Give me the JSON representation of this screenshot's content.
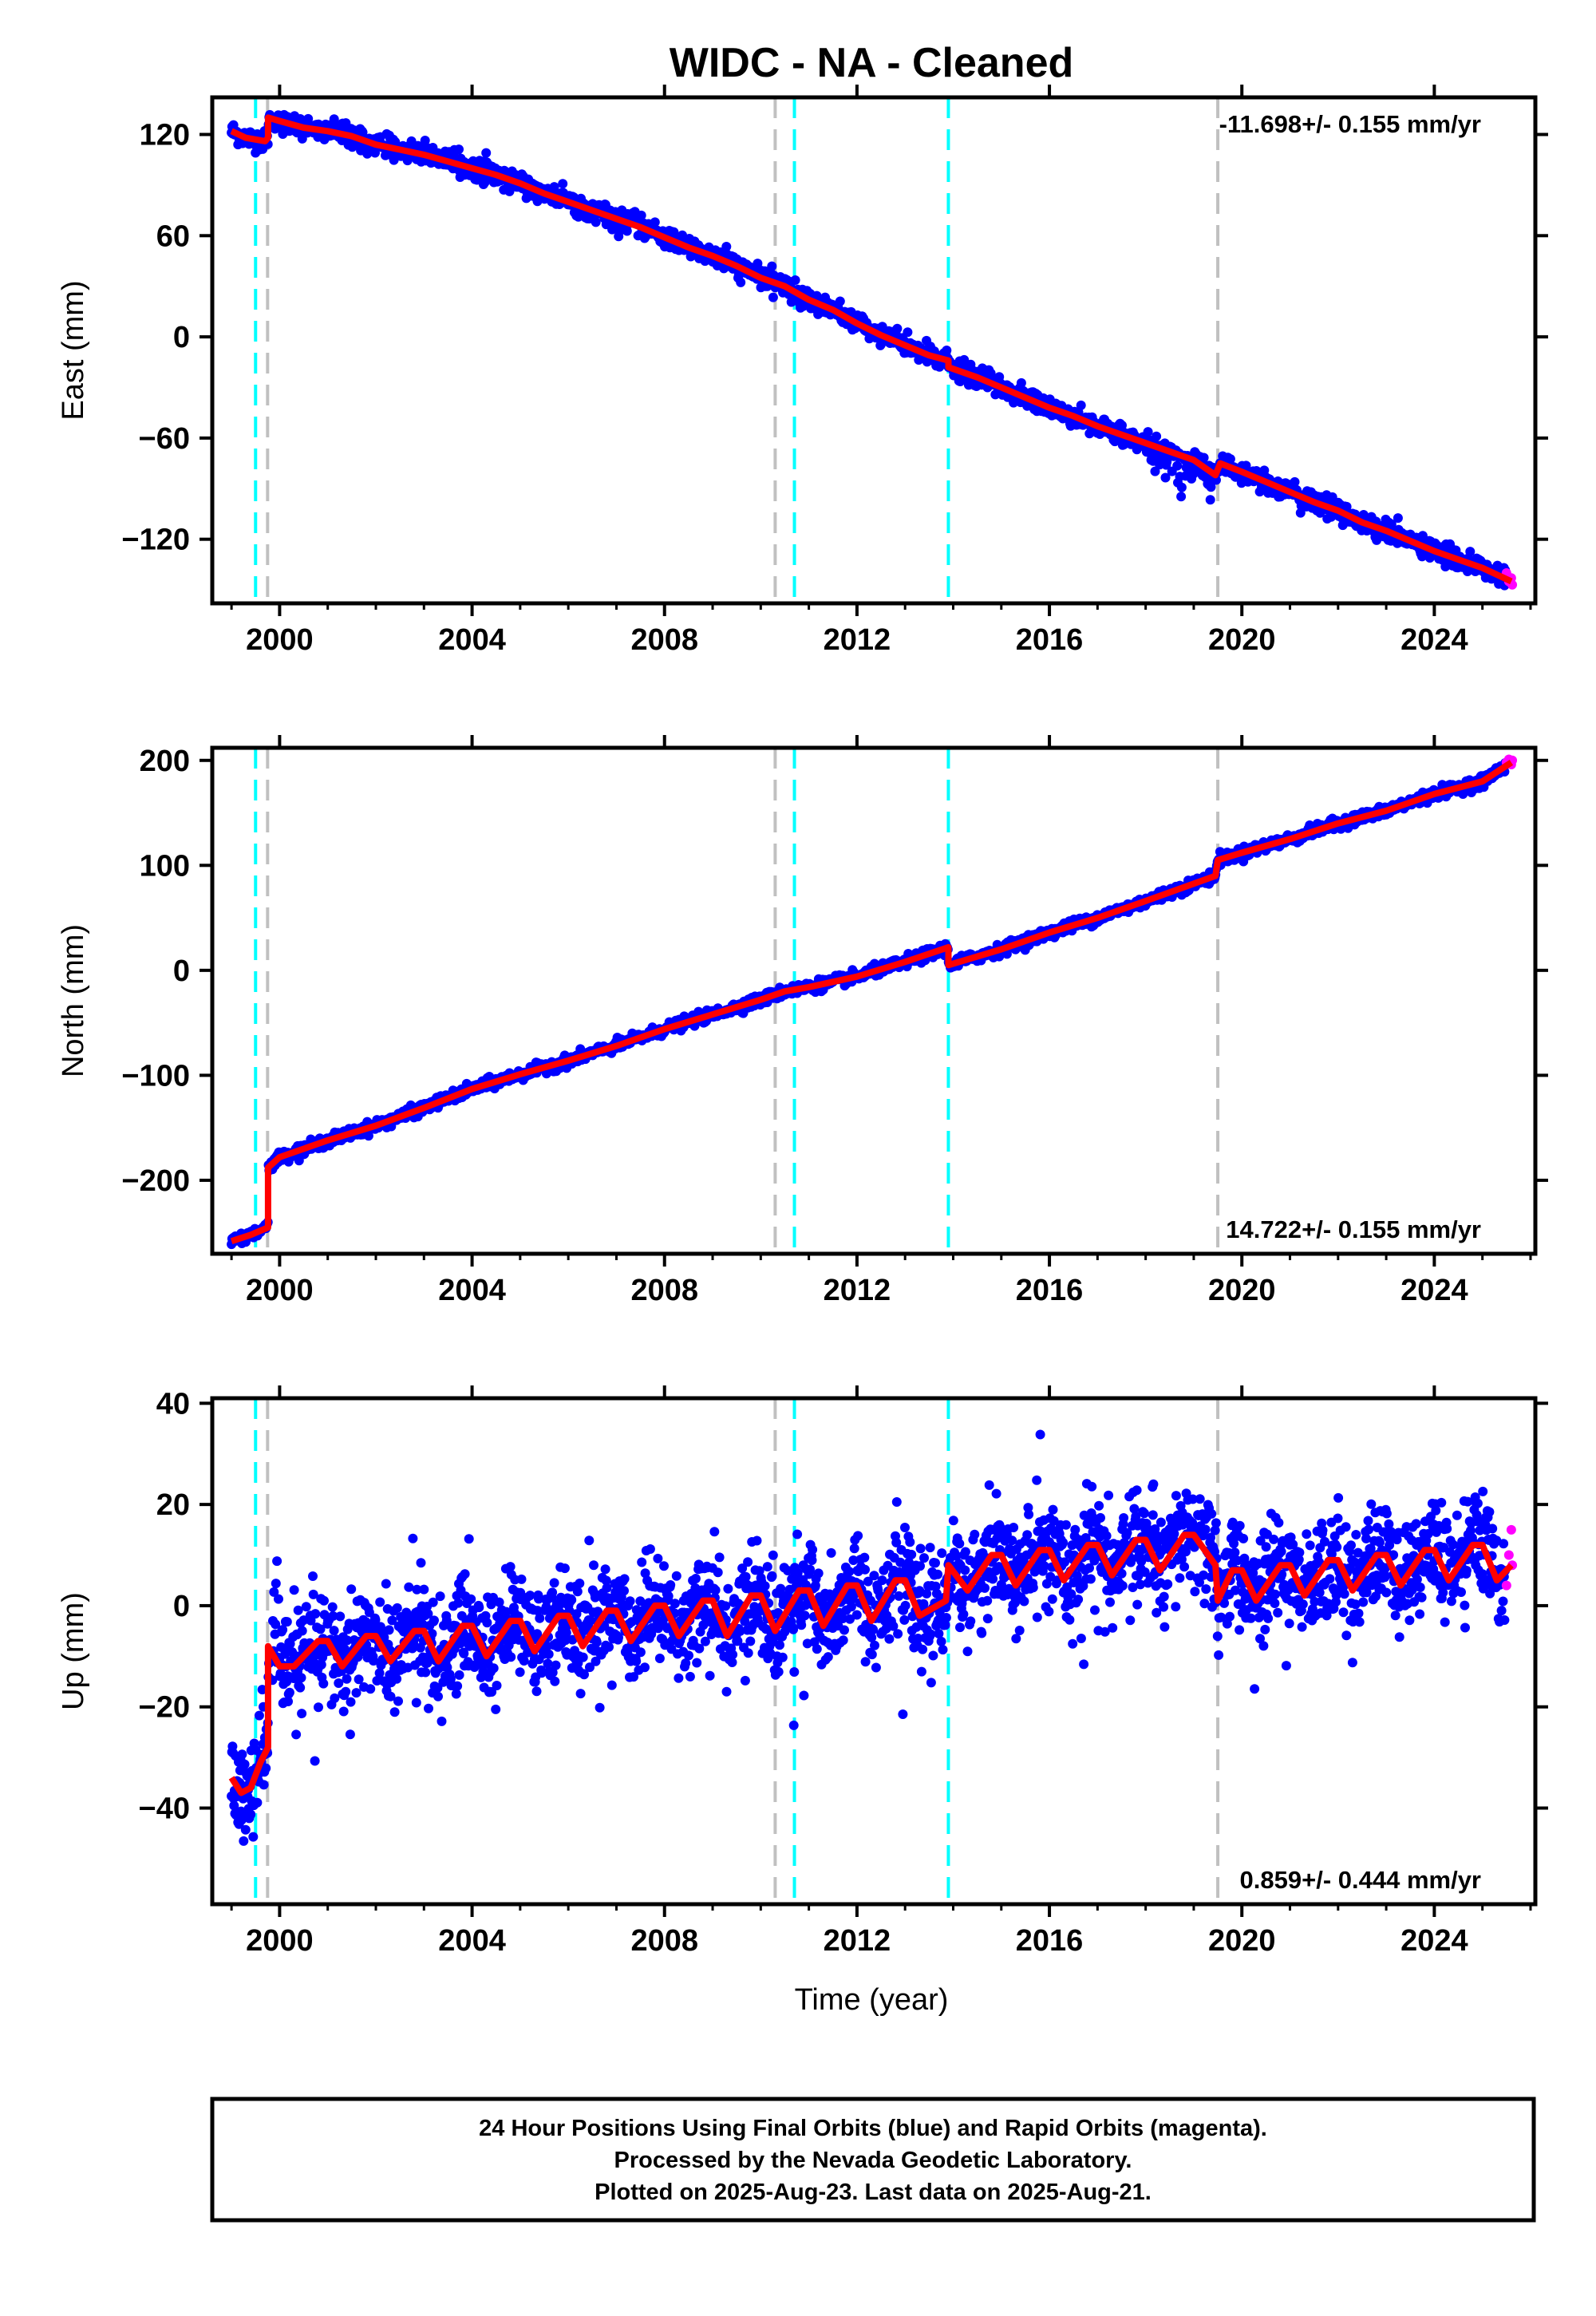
{
  "title": "WIDC  - NA - Cleaned",
  "xlabel": "Time (year)",
  "footer": {
    "line1": "24 Hour Positions Using Final Orbits (blue) and Rapid Orbits (magenta).",
    "line2": "Processed by the Nevada Geodetic Laboratory.",
    "line3": "Plotted on 2025-Aug-23. Last data on 2025-Aug-21."
  },
  "colors": {
    "final_points": "#0000ff",
    "rapid_points": "#ff00ff",
    "model": "#ff0000",
    "equipment_change": "#00ffff",
    "earthquake": "#c0c0c0"
  },
  "chart_data": [
    {
      "type": "scatter",
      "panel": "east",
      "ylabel": "East (mm)",
      "rate": "-11.698+/- 0.155 mm/yr",
      "xlim": [
        1998.6,
        2026.1
      ],
      "ylim": [
        -158,
        142
      ],
      "xticks": [
        2000,
        2004,
        2008,
        2012,
        2016,
        2020,
        2024
      ],
      "yticks": [
        -120,
        -60,
        0,
        60,
        120
      ],
      "vlines_cyan": [
        1999.5,
        2010.7,
        2013.9
      ],
      "vlines_gray": [
        1999.75,
        2010.3,
        2019.5
      ],
      "model": {
        "x": [
          1999.0,
          1999.3,
          1999.7,
          1999.76,
          1999.76,
          2000.0,
          2000.5,
          2001.0,
          2001.5,
          2002.0,
          2002.5,
          2003.0,
          2003.5,
          2004.0,
          2004.5,
          2005.0,
          2005.5,
          2006.0,
          2006.5,
          2007.0,
          2007.5,
          2008.0,
          2008.5,
          2009.0,
          2009.5,
          2010.0,
          2010.5,
          2011.0,
          2011.5,
          2012.0,
          2012.5,
          2013.0,
          2013.5,
          2013.9,
          2013.9,
          2014.5,
          2015.0,
          2015.5,
          2016.0,
          2016.5,
          2017.0,
          2017.5,
          2018.0,
          2018.5,
          2019.0,
          2019.45,
          2019.55,
          2020.0,
          2020.5,
          2021.0,
          2021.5,
          2022.0,
          2022.5,
          2023.0,
          2023.5,
          2024.0,
          2024.5,
          2025.0,
          2025.6
        ],
        "y": [
          122,
          118,
          116,
          118,
          130,
          128,
          124,
          122,
          119,
          114,
          111,
          108,
          104,
          100,
          96,
          91,
          85,
          80,
          75,
          70,
          65,
          59,
          53,
          48,
          42,
          35,
          30,
          22,
          16,
          8,
          1,
          -5,
          -11,
          -14,
          -18,
          -24,
          -30,
          -36,
          -42,
          -47,
          -53,
          -58,
          -63,
          -68,
          -73,
          -82,
          -75,
          -80,
          -86,
          -92,
          -98,
          -103,
          -110,
          -115,
          -121,
          -127,
          -132,
          -137,
          -145
        ]
      },
      "rapid": {
        "x": [
          2025.5,
          2025.55,
          2025.6,
          2025.62
        ],
        "y": [
          -140,
          -145,
          -143,
          -147
        ]
      }
    },
    {
      "type": "scatter",
      "panel": "north",
      "ylabel": "North (mm)",
      "rate": "14.722+/- 0.155 mm/yr",
      "xlim": [
        1998.6,
        2026.1
      ],
      "ylim": [
        -270,
        212
      ],
      "xticks": [
        2000,
        2004,
        2008,
        2012,
        2016,
        2020,
        2024
      ],
      "yticks": [
        -200,
        -100,
        0,
        100,
        200
      ],
      "vlines_cyan": [
        1999.5,
        2010.7,
        2013.9
      ],
      "vlines_gray": [
        1999.75,
        2010.3,
        2019.5
      ],
      "model": {
        "x": [
          1999.0,
          1999.4,
          1999.76,
          1999.76,
          2000.0,
          2001.0,
          2002.0,
          2003.0,
          2004.0,
          2005.0,
          2006.0,
          2007.0,
          2008.0,
          2009.0,
          2010.0,
          2010.5,
          2011.0,
          2012.0,
          2013.0,
          2013.9,
          2013.9,
          2015.0,
          2016.0,
          2017.0,
          2018.0,
          2019.45,
          2019.5,
          2020.0,
          2021.0,
          2022.0,
          2023.0,
          2024.0,
          2025.0,
          2025.6
        ],
        "y": [
          -258,
          -252,
          -245,
          -188,
          -178,
          -162,
          -148,
          -131,
          -113,
          -99,
          -86,
          -72,
          -56,
          -42,
          -28,
          -20,
          -16,
          -6,
          8,
          22,
          5,
          20,
          36,
          50,
          66,
          90,
          105,
          112,
          125,
          140,
          152,
          168,
          180,
          198
        ]
      },
      "rapid": {
        "x": [
          2025.5,
          2025.55,
          2025.6,
          2025.62
        ],
        "y": [
          198,
          201,
          196,
          200
        ]
      }
    },
    {
      "type": "scatter",
      "panel": "up",
      "ylabel": "Up (mm)",
      "rate": "0.859+/- 0.444 mm/yr",
      "xlim": [
        1998.6,
        2026.1
      ],
      "ylim": [
        -59,
        41
      ],
      "xticks": [
        2000,
        2004,
        2008,
        2012,
        2016,
        2020,
        2024
      ],
      "yticks": [
        -40,
        -20,
        0,
        20,
        40
      ],
      "vlines_cyan": [
        1999.5,
        2010.7,
        2013.9
      ],
      "vlines_gray": [
        1999.75,
        2010.3,
        2019.5
      ],
      "model": {
        "x": [
          1999.0,
          1999.2,
          1999.4,
          1999.6,
          1999.76,
          1999.76,
          2000.0,
          2000.3,
          2000.8,
          2001.0,
          2001.3,
          2001.8,
          2002.0,
          2002.3,
          2002.8,
          2003.0,
          2003.3,
          2003.8,
          2004.0,
          2004.3,
          2004.8,
          2005.0,
          2005.3,
          2005.8,
          2006.0,
          2006.3,
          2006.8,
          2007.0,
          2007.3,
          2007.8,
          2008.0,
          2008.3,
          2008.8,
          2009.0,
          2009.3,
          2009.8,
          2010.0,
          2010.3,
          2010.8,
          2011.0,
          2011.3,
          2011.8,
          2012.0,
          2012.3,
          2012.8,
          2013.0,
          2013.3,
          2013.85,
          2013.9,
          2014.3,
          2014.8,
          2015.0,
          2015.3,
          2015.8,
          2016.0,
          2016.3,
          2016.8,
          2017.0,
          2017.3,
          2017.8,
          2018.0,
          2018.3,
          2018.8,
          2019.0,
          2019.45,
          2019.5,
          2019.8,
          2020.0,
          2020.3,
          2020.8,
          2021.0,
          2021.3,
          2021.8,
          2022.0,
          2022.3,
          2022.8,
          2023.0,
          2023.3,
          2023.8,
          2024.0,
          2024.3,
          2024.8,
          2025.0,
          2025.3,
          2025.6
        ],
        "y": [
          -34,
          -37,
          -36,
          -31,
          -28,
          -8,
          -12,
          -12,
          -7,
          -7,
          -12,
          -6,
          -6,
          -11,
          -5,
          -5,
          -11,
          -4,
          -4,
          -10,
          -3,
          -3,
          -9,
          -2,
          -2,
          -8,
          -1,
          -1,
          -7,
          0,
          0,
          -6,
          1,
          1,
          -6,
          2,
          2,
          -5,
          3,
          3,
          -4,
          4,
          4,
          -3,
          5,
          5,
          -2,
          1,
          8,
          3,
          10,
          10,
          4,
          11,
          11,
          5,
          12,
          12,
          6,
          13,
          13,
          7,
          14,
          14,
          8,
          1,
          7,
          7,
          1,
          8,
          8,
          2,
          9,
          9,
          3,
          10,
          10,
          4,
          11,
          11,
          5,
          12,
          12,
          5,
          8
        ]
      },
      "rapid": {
        "x": [
          2025.5,
          2025.55,
          2025.6,
          2025.62
        ],
        "y": [
          4,
          10,
          15,
          8
        ]
      }
    }
  ]
}
